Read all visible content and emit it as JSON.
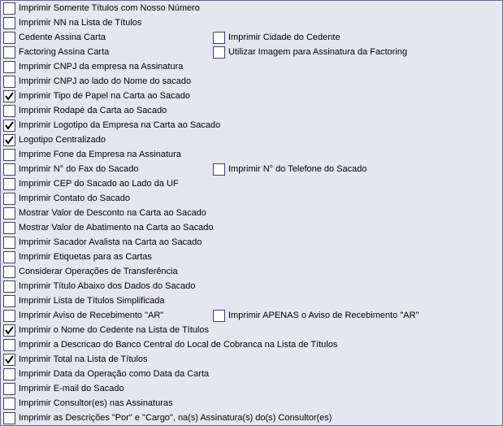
{
  "rows": [
    {
      "left": {
        "label": "Imprimir Somente Títulos com Nosso Número",
        "checked": false
      }
    },
    {
      "left": {
        "label": "Imprimir NN na Lista de Títulos",
        "checked": false
      }
    },
    {
      "left": {
        "label": "Cedente Assina Carta",
        "checked": false
      },
      "right": {
        "label": "Imprimir Cidade do Cedente",
        "checked": false
      }
    },
    {
      "left": {
        "label": "Factoring Assina Carta",
        "checked": false
      },
      "right": {
        "label": "Utilizar Imagem para Assinatura da Factoring",
        "checked": false
      }
    },
    {
      "left": {
        "label": "Imprimir CNPJ da empresa na Assinatura",
        "checked": false
      }
    },
    {
      "left": {
        "label": "Imprimir CNPJ ao lado do Nome do sacado",
        "checked": false
      }
    },
    {
      "left": {
        "label": "Imprimir Tipo de Papel na Carta ao Sacado",
        "checked": true
      }
    },
    {
      "left": {
        "label": "Imprimir Rodapé da Carta ao Sacado",
        "checked": false
      }
    },
    {
      "left": {
        "label": "Imprimir Logotipo da Empresa na Carta ao Sacado",
        "checked": true
      }
    },
    {
      "left": {
        "label": "Logotipo Centralizado",
        "checked": true
      }
    },
    {
      "left": {
        "label": "Imprime Fone da Empresa na Assinatura",
        "checked": false
      }
    },
    {
      "left": {
        "label": "Imprimir N° do Fax do Sacado",
        "checked": false
      },
      "right": {
        "label": "Imprimir N° do Telefone do Sacado",
        "checked": false
      }
    },
    {
      "left": {
        "label": "Imprimir CEP do Sacado ao Lado da UF",
        "checked": false
      }
    },
    {
      "left": {
        "label": "Imprimir Contato do Sacado",
        "checked": false
      }
    },
    {
      "left": {
        "label": "Mostrar Valor de Desconto na Carta ao Sacado",
        "checked": false
      }
    },
    {
      "left": {
        "label": "Mostrar Valor de Abatimento na Carta ao Sacado",
        "checked": false
      }
    },
    {
      "left": {
        "label": "Imprimir Sacador Avalista na Carta ao Sacado",
        "checked": false
      }
    },
    {
      "left": {
        "label": "Imprimir Etiquetas para as Cartas",
        "checked": false
      }
    },
    {
      "left": {
        "label": "Considerar Operações de Transferência",
        "checked": false
      }
    },
    {
      "left": {
        "label": "Imprimir Título Abaixo dos Dados do Sacado",
        "checked": false
      }
    },
    {
      "left": {
        "label": "Imprimir Lista de Títulos Simplificada",
        "checked": false
      }
    },
    {
      "left": {
        "label": "Imprimir Aviso de Recebimento \"AR\"",
        "checked": false
      },
      "right": {
        "label": "Imprimir APENAS o Aviso de Recebimento \"AR\"",
        "checked": false
      }
    },
    {
      "left": {
        "label": "Imprimir o Nome do Cedente na Lista de Títulos",
        "checked": true
      }
    },
    {
      "left": {
        "label": "Imprimir a Descricao do Banco Central do Local de Cobranca na Lista de Títulos",
        "checked": false
      }
    },
    {
      "left": {
        "label": "Imprimir Total na Lista de Títulos",
        "checked": true
      }
    },
    {
      "left": {
        "label": "Imprimir Data da Operação como Data da Carta",
        "checked": false
      }
    },
    {
      "left": {
        "label": "Imprimir E-mail do Sacado",
        "checked": false
      }
    },
    {
      "left": {
        "label": "Imprimir Consultor(es) nas Assinaturas",
        "checked": false
      }
    },
    {
      "left": {
        "label": "Imprimir as Descrições \"Por\" e \"Cargo\", na(s) Assinatura(s) do(s) Consultor(es)",
        "checked": false
      }
    }
  ]
}
